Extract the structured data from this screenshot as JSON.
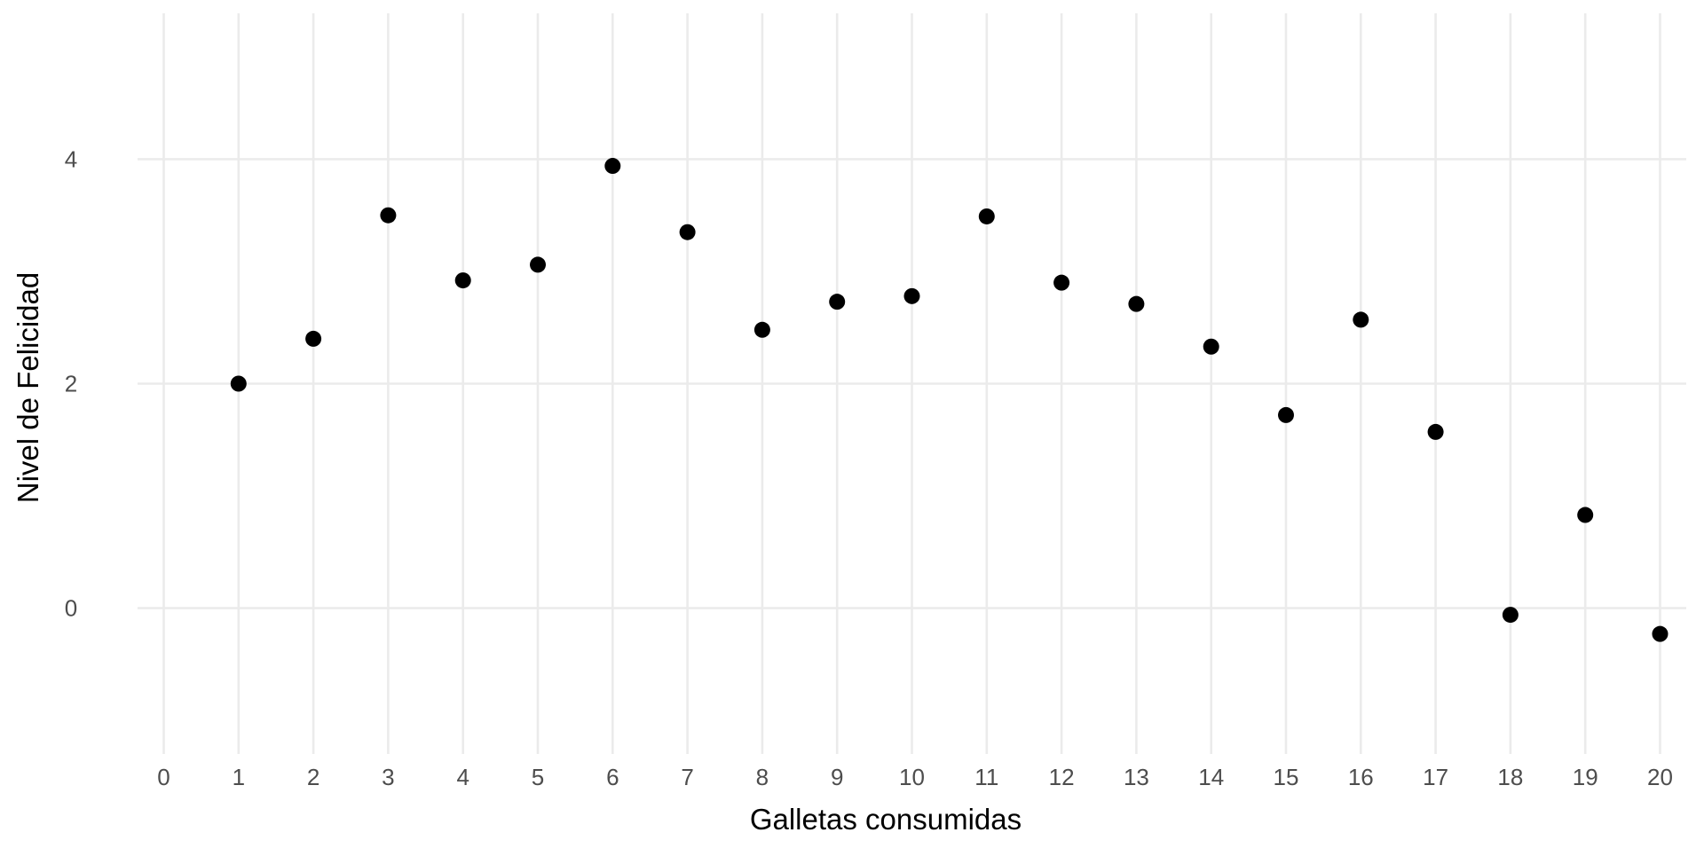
{
  "chart_data": {
    "type": "scatter",
    "title": "",
    "xlabel": "Galletas consumidas",
    "ylabel": "Nivel de Felicidad",
    "x": [
      1,
      2,
      3,
      4,
      5,
      6,
      7,
      8,
      9,
      10,
      11,
      12,
      13,
      14,
      15,
      16,
      17,
      18,
      19,
      20
    ],
    "y": [
      2.0,
      2.4,
      3.5,
      2.92,
      3.06,
      3.94,
      3.35,
      2.48,
      2.73,
      2.78,
      3.49,
      2.9,
      2.71,
      2.33,
      1.72,
      2.57,
      1.57,
      -0.06,
      0.83,
      -0.23
    ],
    "xlim": [
      -0.35,
      20.35
    ],
    "ylim": [
      -1.3,
      5.3
    ],
    "x_ticks": [
      0,
      1,
      2,
      3,
      4,
      5,
      6,
      7,
      8,
      9,
      10,
      11,
      12,
      13,
      14,
      15,
      16,
      17,
      18,
      19,
      20
    ],
    "x_tick_labels": [
      "0",
      "1",
      "2",
      "3",
      "4",
      "5",
      "6",
      "7",
      "8",
      "9",
      "10",
      "11",
      "12",
      "13",
      "14",
      "15",
      "16",
      "17",
      "18",
      "19",
      "20"
    ],
    "y_ticks": [
      0,
      2,
      4
    ],
    "y_tick_labels": [
      "0",
      "2",
      "4"
    ],
    "grid": true,
    "legend": "none",
    "point_color": "#000000",
    "grid_color": "#ebebeb",
    "background_color": "#ffffff"
  }
}
